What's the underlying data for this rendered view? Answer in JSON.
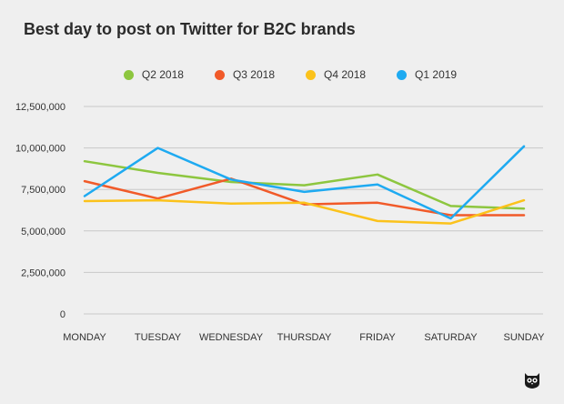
{
  "chart_data": {
    "type": "line",
    "title": "Best day to post on Twitter for B2C brands",
    "xlabel": "",
    "ylabel": "",
    "ylim": [
      0,
      12500000
    ],
    "yticks": [
      0,
      2500000,
      5000000,
      7500000,
      10000000,
      12500000
    ],
    "ytick_labels": [
      "0",
      "2,500,000",
      "5,000,000",
      "7,500,000",
      "10,000,000",
      "12,500,000"
    ],
    "categories": [
      "MONDAY",
      "TUESDAY",
      "WEDNESDAY",
      "THURSDAY",
      "FRIDAY",
      "SATURDAY",
      "SUNDAY"
    ],
    "grid": true,
    "legend_position": "top-center",
    "series": [
      {
        "name": "Q2 2018",
        "color": "#8dc63f",
        "values": [
          9200000,
          8500000,
          7950000,
          7750000,
          8400000,
          6500000,
          6350000
        ]
      },
      {
        "name": "Q3 2018",
        "color": "#f15a29",
        "values": [
          8000000,
          6950000,
          8150000,
          6600000,
          6700000,
          5950000,
          5950000
        ]
      },
      {
        "name": "Q4 2018",
        "color": "#fbc21b",
        "values": [
          6800000,
          6850000,
          6650000,
          6700000,
          5600000,
          5450000,
          6850000
        ]
      },
      {
        "name": "Q1 2019",
        "color": "#1eaaf1",
        "values": [
          7100000,
          10000000,
          8100000,
          7350000,
          7800000,
          5750000,
          10100000
        ]
      }
    ]
  },
  "brand": {
    "logo_icon": "owl-icon"
  }
}
